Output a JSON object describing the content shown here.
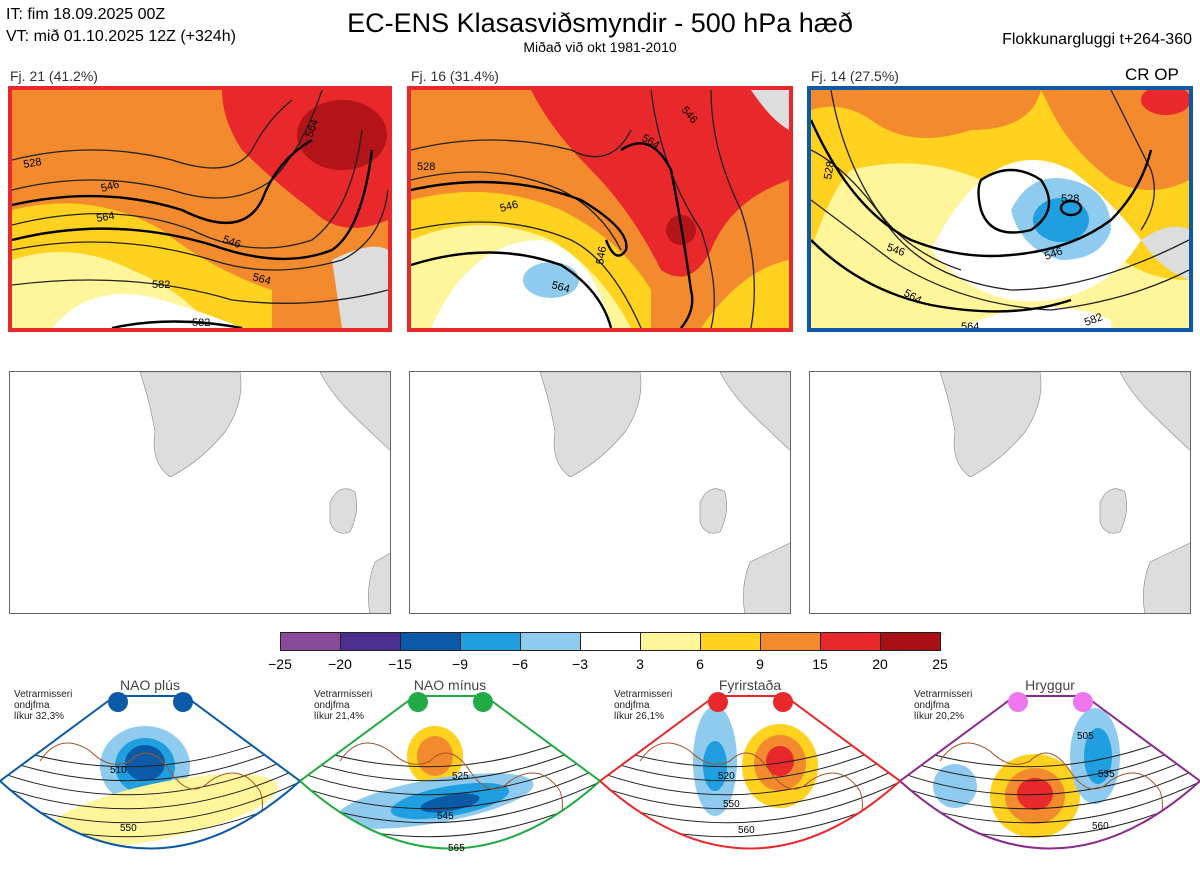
{
  "header": {
    "init_time": "IT: fim 18.09.2025 00Z",
    "valid_time": "VT: mið 01.10.2025 12Z  (+324h)",
    "title": "EC-ENS Klasasviðsmyndir - 500 hPa hæð",
    "subtitle": "Miðað við okt 1981-2010",
    "window": "Flokkunargluggi t+264-360"
  },
  "clusters": [
    {
      "label": "Fj. 21 (41.2%)",
      "border_color": "#e8282b",
      "contours": [
        "528",
        "546",
        "564",
        "582",
        "564",
        "546",
        "564",
        "582"
      ]
    },
    {
      "label": "Fj. 16 (31.4%)",
      "border_color": "#e8282b",
      "contours": [
        "528",
        "546",
        "564",
        "546",
        "564",
        "546"
      ]
    },
    {
      "label": "Fj. 14 (27.5%)",
      "border_color": "#0b5aa8",
      "contours": [
        "528",
        "546",
        "564",
        "528",
        "546",
        "564",
        "582"
      ]
    }
  ],
  "control_label": "CR OP",
  "colorbar": {
    "colors": [
      "#8a4a9a",
      "#4a2f8e",
      "#0b5aa8",
      "#1f9ee0",
      "#8ecbee",
      "#ffffff",
      "#fff59a",
      "#ffd21f",
      "#f38b2e",
      "#e8282b",
      "#a81015"
    ],
    "ticks": [
      "−25",
      "−20",
      "−15",
      "−9",
      "−6",
      "−3",
      "3",
      "6",
      "9",
      "15",
      "20",
      "25"
    ]
  },
  "regimes": [
    {
      "name": "NAO plús",
      "text": "Vetrarmisseri\nondjfma\nlíkur 32,3%",
      "dot_color": "#0b5aa8",
      "border": "#0b5aa8",
      "contours": [
        "510",
        "550"
      ]
    },
    {
      "name": "NAO mínus",
      "text": "Vetrarmisseri\nondjfma\nlíkur 21,4%",
      "dot_color": "#22aa44",
      "border": "#22aa44",
      "contours": [
        "525",
        "545",
        "565"
      ]
    },
    {
      "name": "Fyrirstaða",
      "text": "Vetrarmisseri\nondjfma\nlíkur 26,1%",
      "dot_color": "#e8282b",
      "border": "#e8282b",
      "contours": [
        "520",
        "550",
        "560"
      ]
    },
    {
      "name": "Hryggur",
      "text": "Vetrarmisseri\nondjfma\nlíkur 20,2%",
      "dot_color": "#ee77ee",
      "border": "#8a2a8e",
      "contours": [
        "505",
        "535",
        "560"
      ]
    }
  ]
}
